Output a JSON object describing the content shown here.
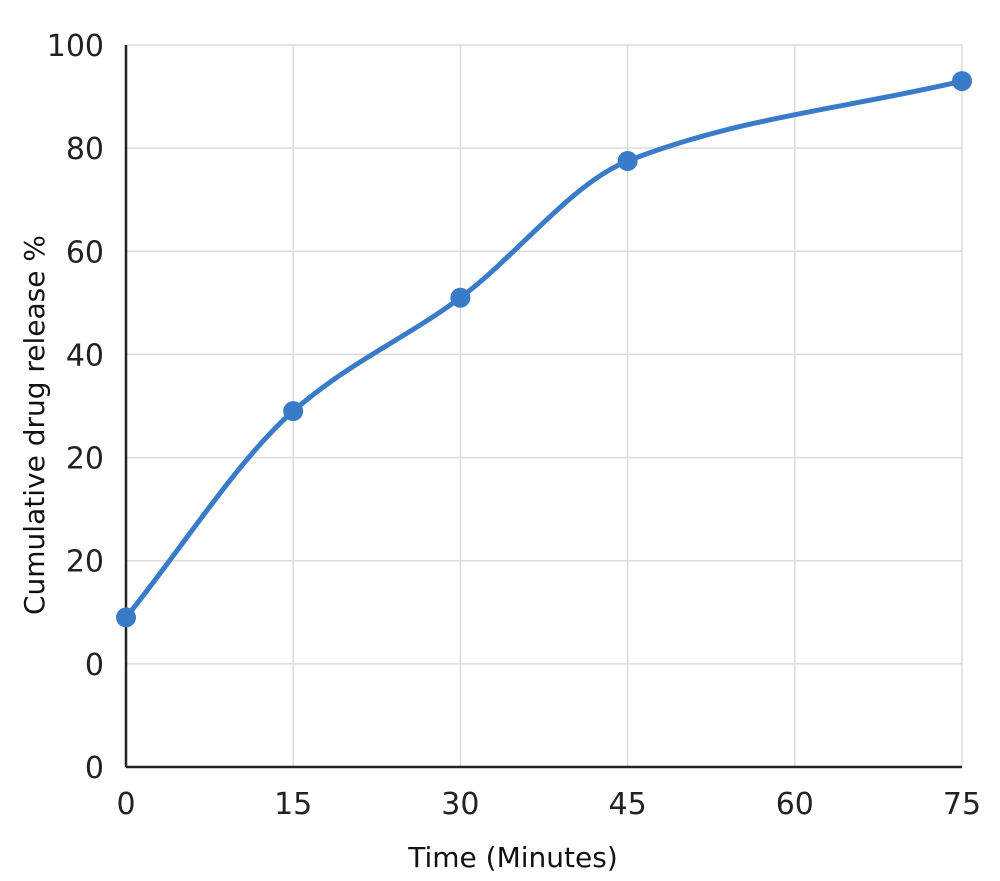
{
  "chart_data": {
    "type": "line",
    "title": "",
    "xlabel": "Time (Minutes)",
    "ylabel": "Cumulative drug release %",
    "x": [
      0,
      15,
      30,
      45,
      60,
      75
    ],
    "x_tick_labels": [
      "0",
      "15",
      "30",
      "45",
      "60",
      "75"
    ],
    "y_tick_labels": [
      "0",
      "0",
      "20",
      "20",
      "40",
      "60",
      "80",
      "100"
    ],
    "series": [
      {
        "x": [
          0,
          15,
          30,
          45,
          75
        ],
        "y": [
          -11,
          29,
          51,
          77.5,
          93
        ],
        "color": "#3a7bc8",
        "smooth": true,
        "markers": true
      }
    ],
    "grid": true,
    "legend": "none"
  }
}
